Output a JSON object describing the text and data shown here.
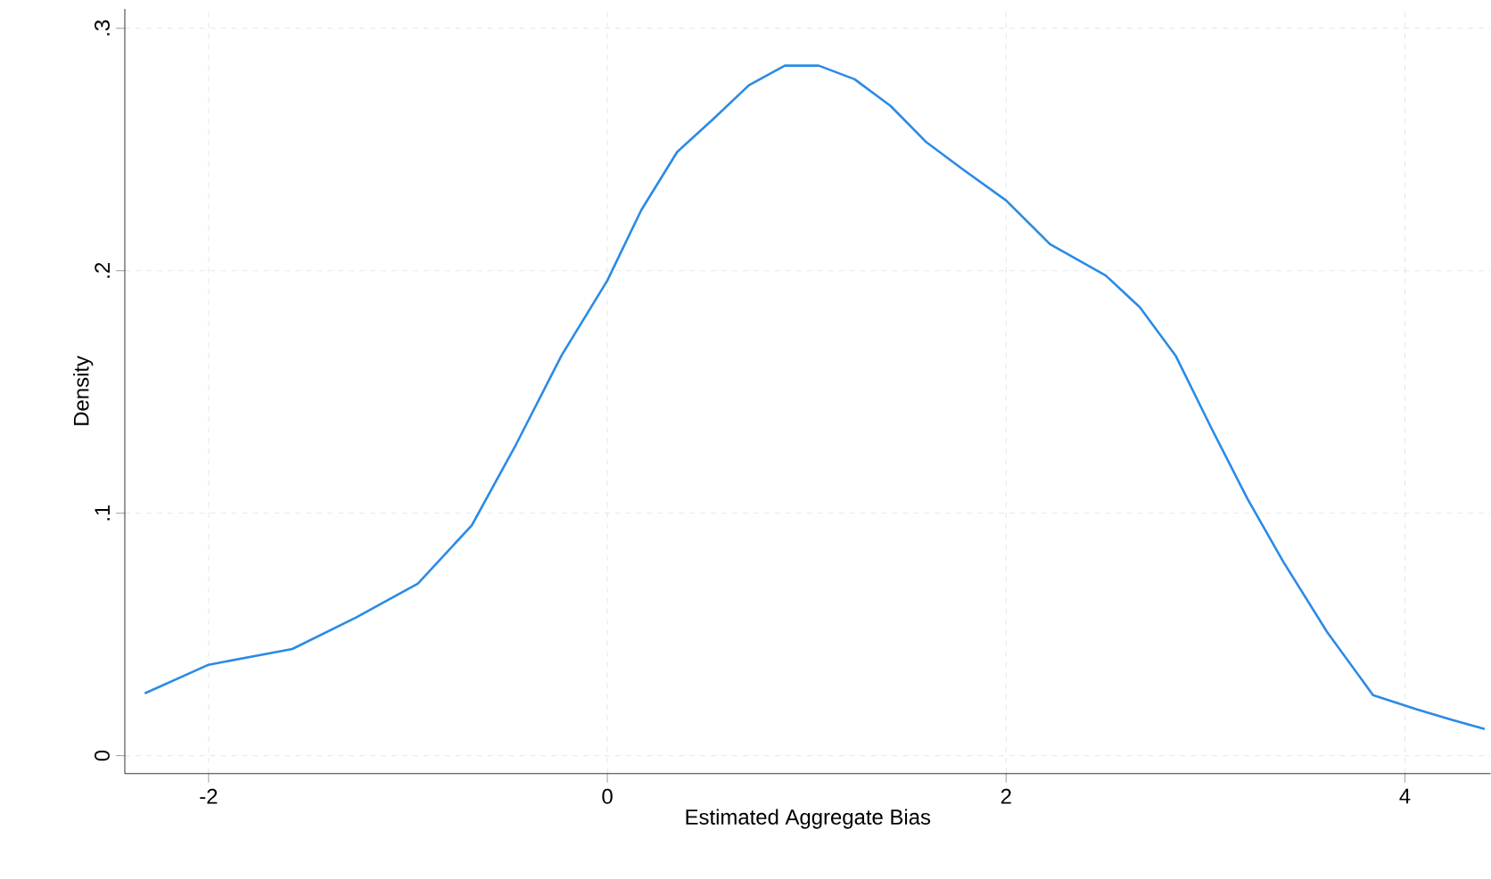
{
  "chart_data": {
    "type": "line",
    "xlabel": "Estimated Aggregate Bias",
    "ylabel": "Density",
    "color": "#2b8ae6",
    "grid": true,
    "xlim": [
      -2.42,
      4.43
    ],
    "ylim": [
      -0.0074,
      0.308
    ],
    "xticks": [
      -2,
      0,
      2,
      4
    ],
    "yticks": [
      0,
      {
        "value": 0.1,
        "label": ".1"
      },
      {
        "value": 0.2,
        "label": ".2"
      },
      {
        "value": 0.3,
        "label": ".3"
      }
    ],
    "x": [
      -2.32,
      -2,
      -1.58,
      -1.26,
      -0.95,
      -0.68,
      -0.46,
      -0.23,
      0,
      0.17,
      0.35,
      0.53,
      0.71,
      0.89,
      1.06,
      1.24,
      1.42,
      1.6,
      1.78,
      2,
      2.22,
      2.5,
      2.67,
      2.85,
      3.03,
      3.21,
      3.39,
      3.61,
      3.84,
      4.06,
      4.24,
      4.4
    ],
    "values": [
      0.0257,
      0.0375,
      0.044,
      0.057,
      0.071,
      0.095,
      0.128,
      0.165,
      0.196,
      0.225,
      0.249,
      0.2625,
      0.2765,
      0.2846,
      0.2846,
      0.279,
      0.268,
      0.253,
      0.242,
      0.229,
      0.211,
      0.198,
      0.185,
      0.165,
      0.135,
      0.106,
      0.08,
      0.051,
      0.025,
      0.0191,
      0.0147,
      0.011
    ]
  }
}
